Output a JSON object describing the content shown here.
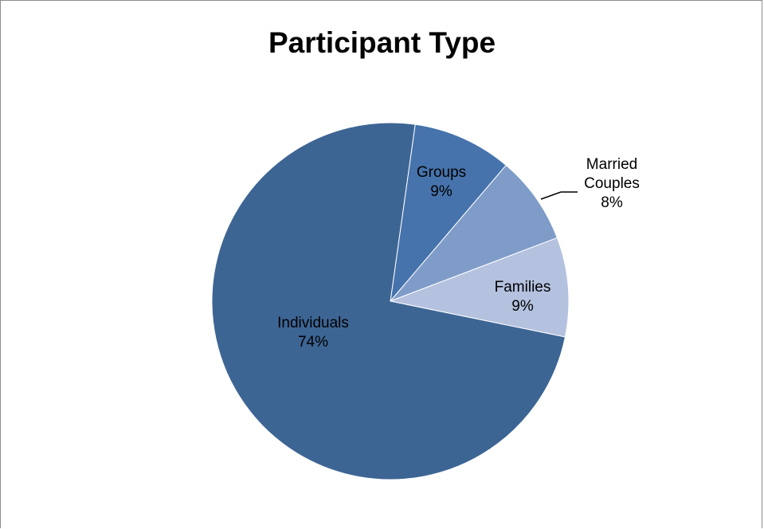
{
  "chart_data": {
    "type": "pie",
    "title": "Participant Type",
    "slices": [
      {
        "label": "Groups",
        "value": 9,
        "display": "9%",
        "color": "#4673ab",
        "label_lines": [
          "Groups"
        ]
      },
      {
        "label": "Married Couples",
        "value": 8,
        "display": "8%",
        "color": "#7f9cc9",
        "label_lines": [
          "Married",
          "Couples"
        ]
      },
      {
        "label": "Families",
        "value": 9,
        "display": "9%",
        "color": "#b4c1df",
        "label_lines": [
          "Families"
        ]
      },
      {
        "label": "Individuals",
        "value": 74,
        "display": "74%",
        "color": "#3d6594",
        "label_lines": [
          "Individuals"
        ]
      }
    ],
    "start_angle_deg": 8,
    "direction": "clockwise",
    "legend": "none"
  }
}
